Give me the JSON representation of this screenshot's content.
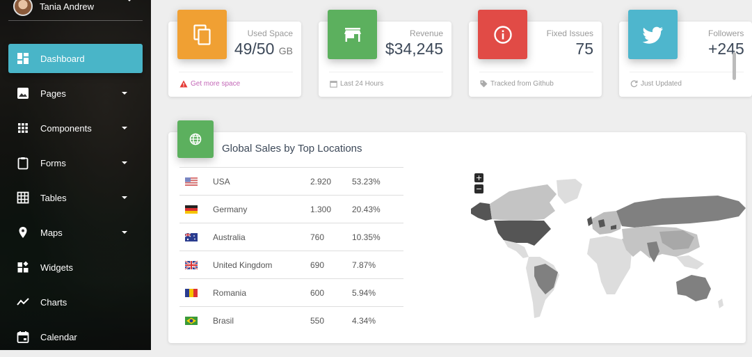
{
  "sidebar": {
    "user_name": "Tania Andrew",
    "items": [
      {
        "label": "Dashboard",
        "icon": "dashboard-icon"
      },
      {
        "label": "Pages",
        "icon": "image-icon"
      },
      {
        "label": "Components",
        "icon": "apps-icon"
      },
      {
        "label": "Forms",
        "icon": "clipboard-icon"
      },
      {
        "label": "Tables",
        "icon": "grid-icon"
      },
      {
        "label": "Maps",
        "icon": "place-icon"
      },
      {
        "label": "Widgets",
        "icon": "widgets-icon"
      },
      {
        "label": "Charts",
        "icon": "timeline-icon"
      },
      {
        "label": "Calendar",
        "icon": "calendar-icon"
      }
    ]
  },
  "stats": [
    {
      "category": "Used Space",
      "value": "49/50",
      "unit": "GB",
      "footer": "Get more space",
      "color": "#f0a033"
    },
    {
      "category": "Revenue",
      "value": "$34,245",
      "unit": "",
      "footer": "Last 24 Hours",
      "color": "#5cb05e"
    },
    {
      "category": "Fixed Issues",
      "value": "75",
      "unit": "",
      "footer": "Tracked from Github",
      "color": "#e14b46"
    },
    {
      "category": "Followers",
      "value": "+245",
      "unit": "",
      "footer": "Just Updated",
      "color": "#4eb6cd"
    }
  ],
  "sales": {
    "title": "Global Sales by Top Locations",
    "rows": [
      {
        "country": "USA",
        "sales": "2.920",
        "percent": "53.23%",
        "flag": "us"
      },
      {
        "country": "Germany",
        "sales": "1.300",
        "percent": "20.43%",
        "flag": "de"
      },
      {
        "country": "Australia",
        "sales": "760",
        "percent": "10.35%",
        "flag": "au"
      },
      {
        "country": "United Kingdom",
        "sales": "690",
        "percent": "7.87%",
        "flag": "gb"
      },
      {
        "country": "Romania",
        "sales": "600",
        "percent": "5.94%",
        "flag": "ro"
      },
      {
        "country": "Brasil",
        "sales": "550",
        "percent": "4.34%",
        "flag": "br"
      }
    ],
    "map": {
      "zoom_in": "+",
      "zoom_out": "−"
    }
  }
}
